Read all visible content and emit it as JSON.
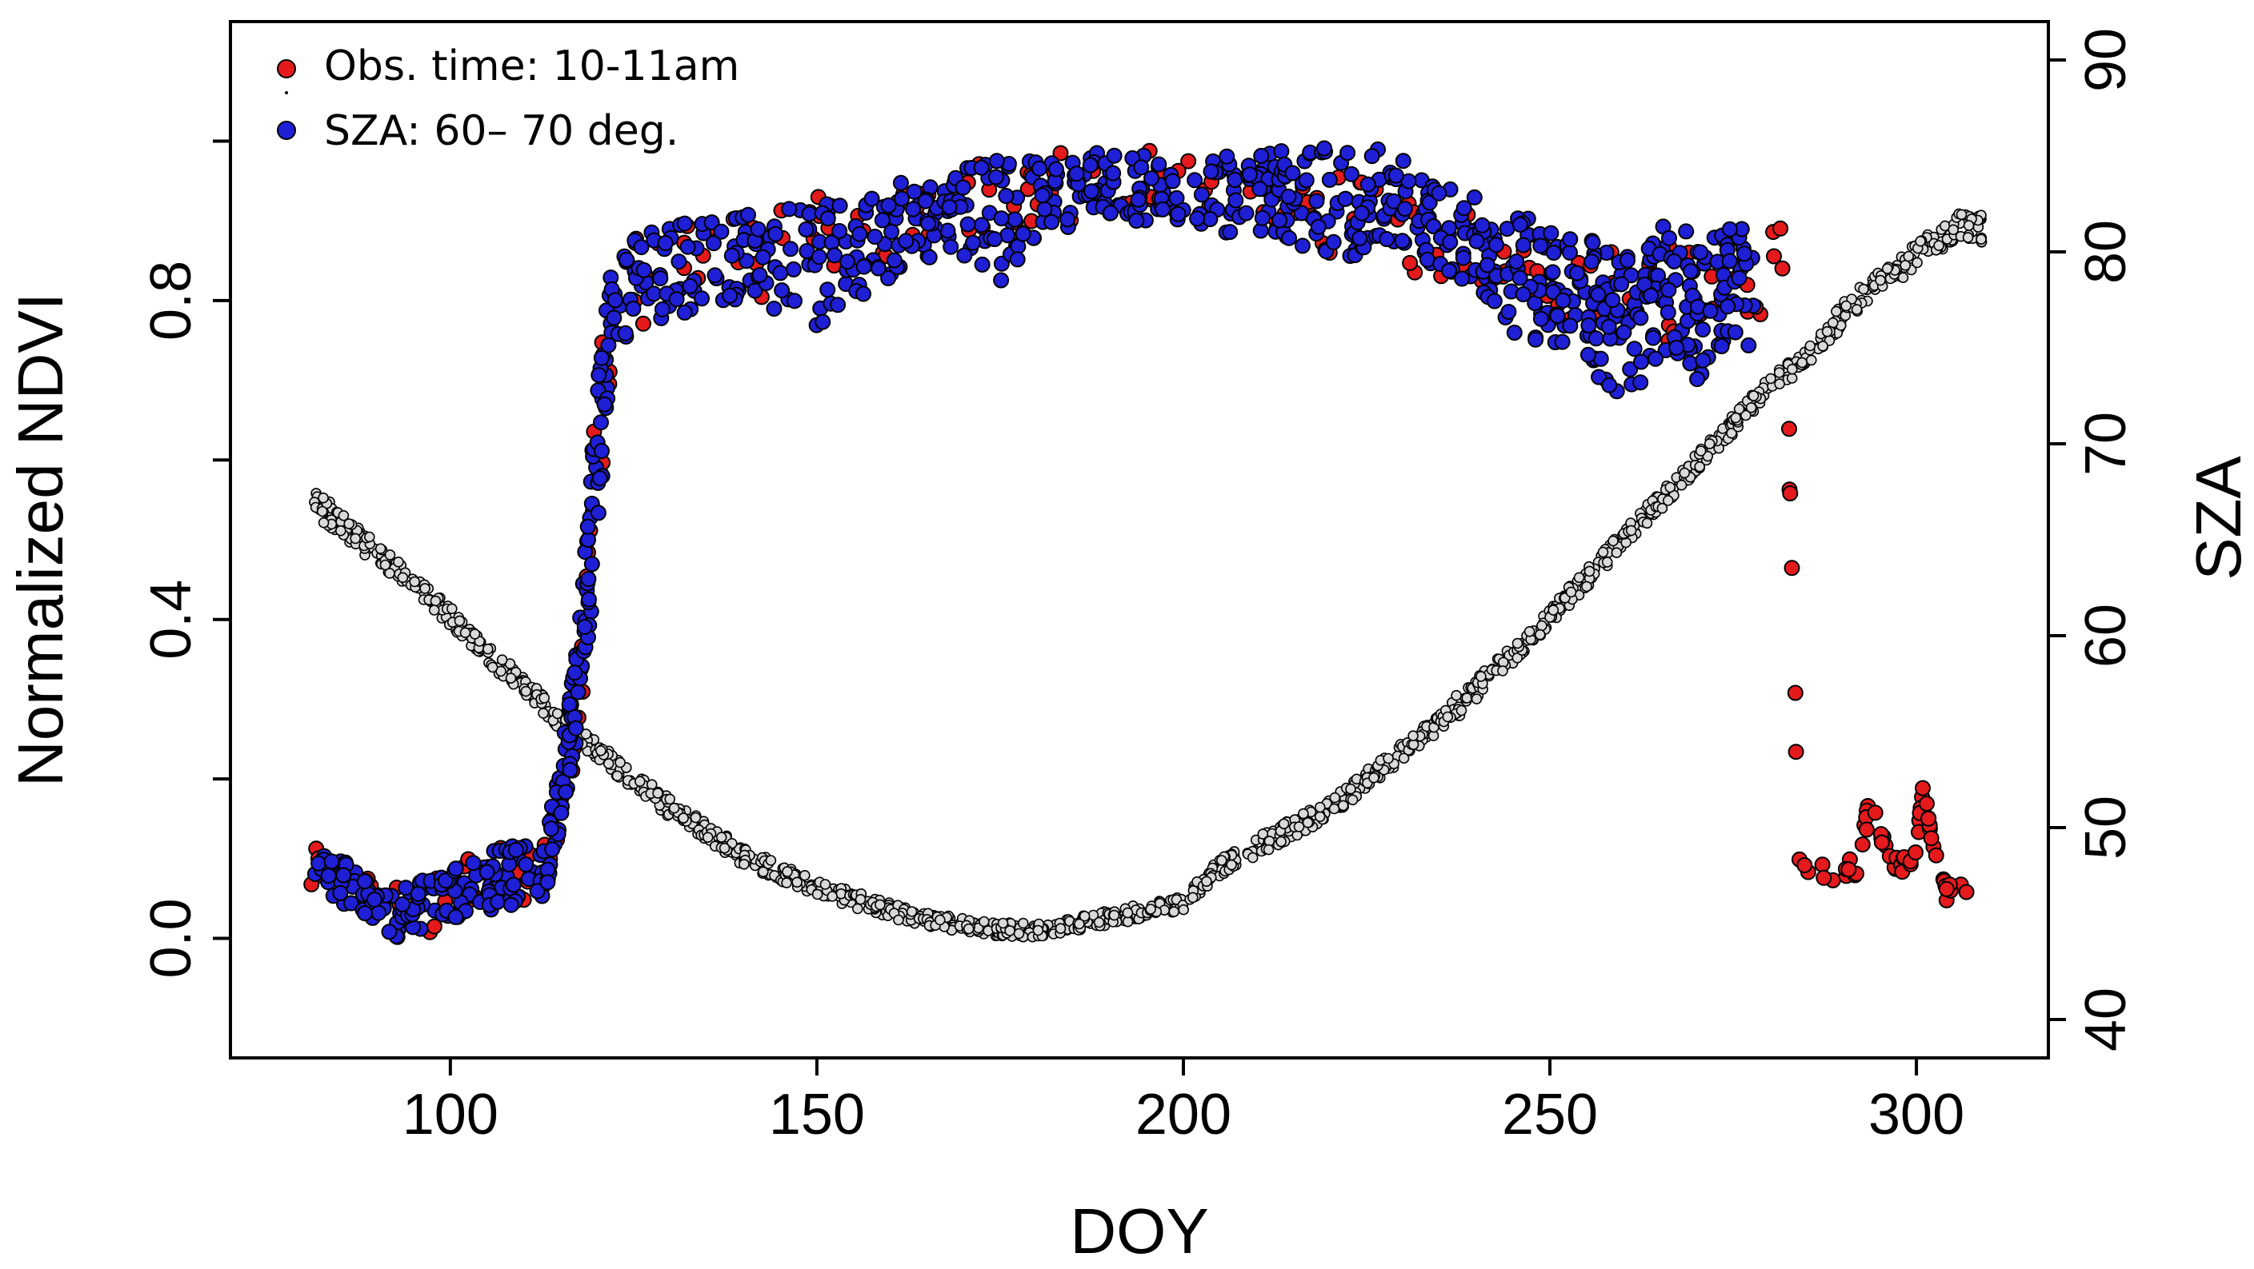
{
  "chart_data": {
    "type": "scatter",
    "title": "",
    "xlabel": "DOY",
    "ylabel": "Normalized NDVI",
    "y2label": "SZA",
    "xlim": [
      70,
      318
    ],
    "ylim": [
      -0.15,
      1.15
    ],
    "y2lim": [
      38,
      92
    ],
    "xticks": [
      100,
      150,
      200,
      250,
      300
    ],
    "xtick_labels": [
      "100",
      "150",
      "200",
      "250",
      "300"
    ],
    "yticks": [
      0.0,
      0.4,
      0.8
    ],
    "ytick_labels": [
      "0.0",
      "0.4",
      "0.8"
    ],
    "yticks_minor": [
      0.2,
      0.6,
      1.0
    ],
    "y2ticks": [
      40,
      50,
      60,
      70,
      80,
      90
    ],
    "y2tick_labels": [
      "40",
      "50",
      "60",
      "70",
      "80",
      "90"
    ],
    "grid": false,
    "legend_position": "top-left",
    "legend": [
      {
        "label": "Obs. time: 10-11am",
        "color": "#e41a1c"
      },
      {
        "label": "SZA: 60– 70 deg.",
        "color": "#1f1fd6"
      }
    ],
    "colors": {
      "obs_time": "#e41a1c",
      "sza_range": "#1f1fd6",
      "sza_curve": "#d9d9d9",
      "marker_edge": "#000000"
    },
    "series": [
      {
        "name": "Obs. time: 10-11am",
        "axis": "left",
        "description_points_are_anchor_days_with_ndvi_range": true,
        "points": [
          [
            81,
            0.05,
            0.12
          ],
          [
            88,
            0.02,
            0.09
          ],
          [
            95,
            0.0,
            0.06
          ],
          [
            102,
            0.02,
            0.1
          ],
          [
            108,
            0.04,
            0.12
          ],
          [
            113,
            0.06,
            0.12
          ],
          [
            116,
            0.16,
            0.3
          ],
          [
            118,
            0.3,
            0.45
          ],
          [
            120,
            0.45,
            0.7
          ],
          [
            122,
            0.72,
            0.86
          ],
          [
            128,
            0.78,
            0.9
          ],
          [
            135,
            0.8,
            0.9
          ],
          [
            142,
            0.8,
            0.92
          ],
          [
            150,
            0.82,
            0.93
          ],
          [
            156,
            0.84,
            0.93
          ],
          [
            162,
            0.86,
            0.95
          ],
          [
            168,
            0.88,
            0.97
          ],
          [
            175,
            0.88,
            0.98
          ],
          [
            180,
            0.9,
            0.99
          ],
          [
            187,
            0.9,
            0.99
          ],
          [
            193,
            0.9,
            0.98
          ],
          [
            199,
            0.92,
            1.0
          ],
          [
            207,
            0.9,
            0.98
          ],
          [
            213,
            0.88,
            0.97
          ],
          [
            218,
            0.86,
            0.96
          ],
          [
            224,
            0.85,
            0.95
          ],
          [
            230,
            0.84,
            0.94
          ],
          [
            236,
            0.82,
            0.92
          ],
          [
            242,
            0.8,
            0.91
          ],
          [
            248,
            0.78,
            0.9
          ],
          [
            254,
            0.76,
            0.89
          ],
          [
            260,
            0.74,
            0.88
          ],
          [
            266,
            0.73,
            0.87
          ],
          [
            272,
            0.72,
            0.86
          ],
          [
            278,
            0.76,
            0.85
          ],
          [
            282,
            0.8,
            0.91
          ],
          [
            284,
            0.08,
            0.1
          ],
          [
            290,
            0.07,
            0.09
          ],
          [
            292,
            0.08,
            0.12
          ],
          [
            294,
            0.17,
            0.19
          ],
          [
            296,
            0.09,
            0.11
          ],
          [
            298,
            0.08,
            0.1
          ],
          [
            300,
            0.1,
            0.12
          ],
          [
            301,
            0.2,
            0.2
          ],
          [
            302,
            0.12,
            0.13
          ],
          [
            304,
            0.04,
            0.07
          ]
        ]
      },
      {
        "name": "SZA: 60– 70 deg.",
        "axis": "left",
        "points": [
          [
            81,
            0.06,
            0.11
          ],
          [
            88,
            0.03,
            0.09
          ],
          [
            93,
            0.0,
            0.06
          ],
          [
            98,
            0.02,
            0.08
          ],
          [
            103,
            0.03,
            0.1
          ],
          [
            108,
            0.04,
            0.12
          ],
          [
            113,
            0.05,
            0.12
          ],
          [
            116,
            0.17,
            0.28
          ],
          [
            118,
            0.3,
            0.44
          ],
          [
            120,
            0.48,
            0.7
          ],
          [
            122,
            0.74,
            0.85
          ],
          [
            128,
            0.77,
            0.9
          ],
          [
            135,
            0.79,
            0.9
          ],
          [
            142,
            0.8,
            0.91
          ],
          [
            150,
            0.76,
            0.92
          ],
          [
            156,
            0.8,
            0.93
          ],
          [
            162,
            0.84,
            0.95
          ],
          [
            168,
            0.86,
            0.96
          ],
          [
            174,
            0.8,
            0.98
          ],
          [
            180,
            0.88,
            0.98
          ],
          [
            187,
            0.9,
            0.99
          ],
          [
            193,
            0.9,
            0.99
          ],
          [
            199,
            0.9,
            0.96
          ],
          [
            207,
            0.88,
            0.99
          ],
          [
            213,
            0.88,
            0.99
          ],
          [
            218,
            0.86,
            1.0
          ],
          [
            224,
            0.85,
            0.98
          ],
          [
            229,
            0.86,
            1.0
          ],
          [
            234,
            0.84,
            0.95
          ],
          [
            240,
            0.82,
            0.93
          ],
          [
            245,
            0.76,
            0.92
          ],
          [
            250,
            0.74,
            0.9
          ],
          [
            255,
            0.72,
            0.88
          ],
          [
            258,
            0.68,
            0.87
          ],
          [
            262,
            0.68,
            0.86
          ],
          [
            266,
            0.74,
            0.9
          ],
          [
            270,
            0.7,
            0.9
          ],
          [
            274,
            0.74,
            0.89
          ]
        ]
      },
      {
        "name": "SZA",
        "axis": "right",
        "points": [
          [
            81,
            66.5,
            67.8
          ],
          [
            85,
            65.0,
            66.5
          ],
          [
            90,
            63.8,
            64.8
          ],
          [
            95,
            62.2,
            63.2
          ],
          [
            100,
            60.5,
            61.5
          ],
          [
            105,
            58.5,
            59.5
          ],
          [
            110,
            57.0,
            58.0
          ],
          [
            115,
            55.0,
            56.0
          ],
          [
            120,
            53.5,
            54.5
          ],
          [
            125,
            52.0,
            53.0
          ],
          [
            130,
            50.5,
            51.5
          ],
          [
            135,
            49.3,
            50.3
          ],
          [
            140,
            48.0,
            49.0
          ],
          [
            145,
            47.2,
            48.2
          ],
          [
            150,
            46.5,
            47.3
          ],
          [
            155,
            45.8,
            46.7
          ],
          [
            160,
            45.3,
            46.1
          ],
          [
            165,
            44.8,
            45.6
          ],
          [
            170,
            44.5,
            45.3
          ],
          [
            175,
            44.3,
            45.1
          ],
          [
            180,
            44.3,
            45.0
          ],
          [
            185,
            44.6,
            45.3
          ],
          [
            190,
            44.9,
            45.7
          ],
          [
            195,
            45.3,
            46.1
          ],
          [
            200,
            45.7,
            46.5
          ],
          [
            205,
            47.5,
            48.5
          ],
          [
            210,
            48.5,
            49.5
          ],
          [
            215,
            49.5,
            50.5
          ],
          [
            220,
            50.5,
            51.5
          ],
          [
            225,
            52.0,
            53.0
          ],
          [
            230,
            53.5,
            54.5
          ],
          [
            235,
            55.0,
            56.0
          ],
          [
            240,
            56.5,
            58.0
          ],
          [
            245,
            58.5,
            59.5
          ],
          [
            250,
            60.5,
            61.5
          ],
          [
            255,
            62.5,
            63.5
          ],
          [
            260,
            64.5,
            65.5
          ],
          [
            265,
            66.5,
            67.5
          ],
          [
            270,
            68.5,
            69.5
          ],
          [
            275,
            70.5,
            71.5
          ],
          [
            280,
            72.5,
            73.5
          ],
          [
            285,
            74.0,
            75.0
          ],
          [
            290,
            76.0,
            77.5
          ],
          [
            295,
            78.0,
            79.0
          ],
          [
            300,
            79.0,
            80.5
          ],
          [
            305,
            80.5,
            82.0
          ]
        ]
      }
    ]
  }
}
